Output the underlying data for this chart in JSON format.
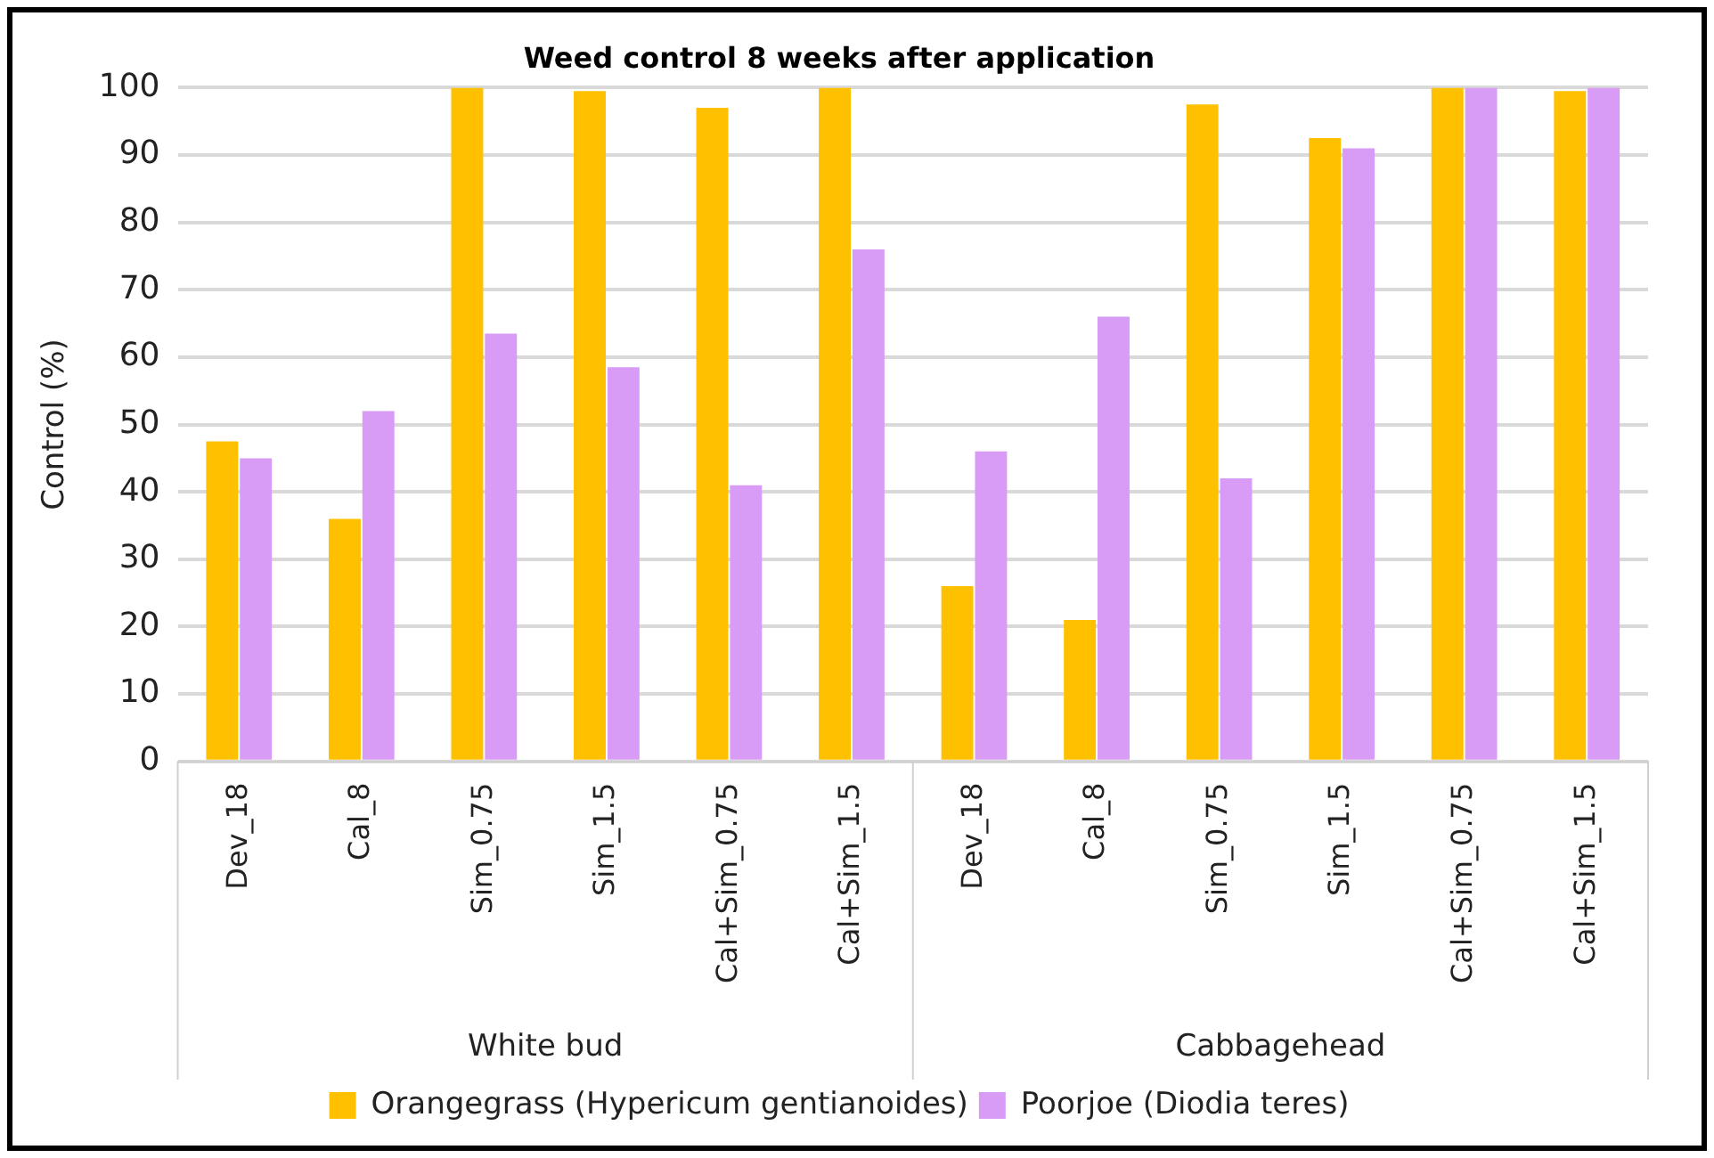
{
  "chart_data": {
    "type": "bar",
    "title": "Weed control 8 weeks after application",
    "ylabel": "Control (%)",
    "categories": [
      "Dev_18",
      "Cal_8",
      "Sim_0.75",
      "Sim_1.5",
      "Cal+Sim_0.75",
      "Cal+Sim_1.5",
      "Dev_18",
      "Cal_8",
      "Sim_0.75",
      "Sim_1.5",
      "Cal+Sim_0.75",
      "Cal+Sim_1.5"
    ],
    "annotations": [
      "White bud",
      "Cabbagehead"
    ],
    "series": [
      {
        "name": "Orangegrass (Hypericum gentianoides)",
        "color": "#ffc000",
        "values": [
          47.5,
          36,
          100,
          99.5,
          97,
          100,
          26,
          21,
          97.5,
          92.5,
          100,
          99.5
        ]
      },
      {
        "name": "Poorjoe (Diodia teres)",
        "color": "#d89cf6",
        "values": [
          45,
          52,
          63.5,
          58.5,
          41,
          76,
          46,
          66,
          42,
          91,
          100,
          100
        ]
      }
    ],
    "ylim": [
      0,
      100
    ],
    "yticks": [
      0,
      10,
      20,
      30,
      40,
      50,
      60,
      70,
      80,
      90,
      100
    ],
    "grid": "y",
    "legend": "bottom"
  }
}
